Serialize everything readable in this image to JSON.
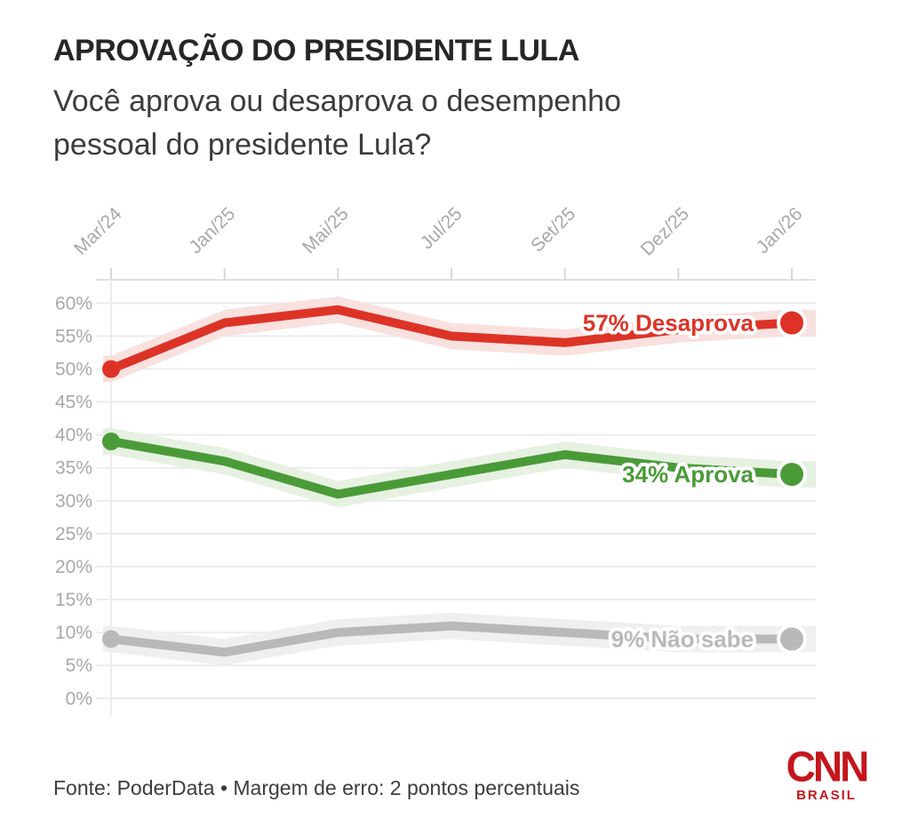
{
  "header": {
    "title": "APROVAÇÃO DO PRESIDENTE LULA",
    "subtitle_lines": [
      "Você aprova ou desaprova o desempenho",
      "pessoal do presidente Lula?"
    ]
  },
  "chart_data": {
    "type": "line",
    "title": "APROVAÇÃO DO PRESIDENTE LULA",
    "categories": [
      "Mar/24",
      "Jan/25",
      "Mai/25",
      "Jul/25",
      "Set/25",
      "Dez/25",
      "Jan/26"
    ],
    "series": [
      {
        "name": "Desaprova",
        "slug": "desaprova",
        "values": [
          50,
          57,
          59,
          55,
          54,
          56,
          57
        ],
        "end_label": "57% Desaprova",
        "color": "#dd3327",
        "band_color": "#f8e1df"
      },
      {
        "name": "Aprova",
        "slug": "aprova",
        "values": [
          39,
          36,
          31,
          34,
          37,
          35,
          34
        ],
        "end_label": "34% Aprova",
        "color": "#4a9b38",
        "band_color": "#e7f1e2"
      },
      {
        "name": "Não sabe",
        "slug": "nao-sabe",
        "values": [
          9,
          7,
          10,
          11,
          10,
          9,
          9
        ],
        "end_label": "9% Não sabe",
        "color": "#b9b9b9",
        "band_color": "#efefef"
      }
    ],
    "y_ticks": [
      "60%",
      "55%",
      "50%",
      "45%",
      "40%",
      "35%",
      "30%",
      "25%",
      "20%",
      "15%",
      "10%",
      "5%",
      "0%"
    ],
    "ylim": [
      0,
      60
    ],
    "y_step": 5,
    "grid": true,
    "legend_position": "end-of-line",
    "margin_of_error_points": 2,
    "xlabel": "",
    "ylabel": ""
  },
  "footer": {
    "source": "Fonte: PoderData • Margem de erro: 2 pontos percentuais",
    "logo": {
      "brand": "CNN",
      "region": "BRASIL",
      "color": "#c4161c"
    }
  },
  "colors": {
    "background": "#ffffff",
    "axis_text": "#a8a8a8",
    "gridline": "#ececec",
    "axis_line": "#e2e2e2",
    "tick": "#d8d8d8"
  }
}
